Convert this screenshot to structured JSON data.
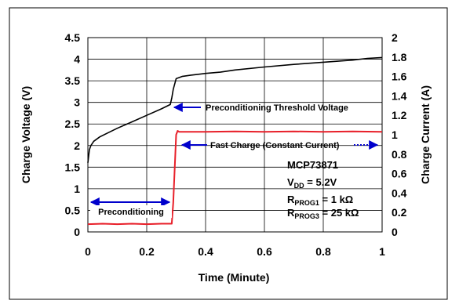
{
  "chart_data": {
    "type": "line",
    "xlabel": "Time (Minute)",
    "ylabel_left": "Charge Voltage (V)",
    "ylabel_right": "Charge Current (A)",
    "xlim": [
      0,
      1
    ],
    "ylim_left": [
      0,
      4.5
    ],
    "ylim_right": [
      0,
      2
    ],
    "x_ticks": [
      "0",
      "0.2",
      "0.4",
      "0.6",
      "0.8",
      "1"
    ],
    "y_ticks_left": [
      "0",
      "0.5",
      "1",
      "1.5",
      "2",
      "2.5",
      "3",
      "3.5",
      "4",
      "4.5"
    ],
    "y_ticks_right": [
      "0",
      "0.2",
      "0.4",
      "0.6",
      "0.8",
      "1",
      "1.2",
      "1.4",
      "1.6",
      "1.8",
      "2"
    ],
    "grid": true,
    "series": [
      {
        "axis": "left",
        "color": "#000000",
        "x": [
          0,
          0.005,
          0.01,
          0.02,
          0.04,
          0.07,
          0.1,
          0.15,
          0.2,
          0.25,
          0.28,
          0.285,
          0.29,
          0.3,
          0.32,
          0.35,
          0.4,
          0.45,
          0.5,
          0.6,
          0.7,
          0.8,
          0.9,
          0.95,
          1.0
        ],
        "values": [
          1.6,
          1.9,
          2.0,
          2.1,
          2.2,
          2.3,
          2.4,
          2.55,
          2.7,
          2.85,
          2.95,
          3.1,
          3.3,
          3.55,
          3.6,
          3.63,
          3.67,
          3.7,
          3.75,
          3.82,
          3.88,
          3.93,
          3.98,
          4.02,
          4.04
        ]
      },
      {
        "axis": "right",
        "color": "#e8202a",
        "x": [
          0,
          0.05,
          0.1,
          0.15,
          0.2,
          0.25,
          0.285,
          0.29,
          0.3,
          0.305,
          0.31,
          0.35,
          0.4,
          0.5,
          0.6,
          0.7,
          0.8,
          0.9,
          1.0
        ],
        "values": [
          0.08,
          0.085,
          0.08,
          0.085,
          0.08,
          0.085,
          0.085,
          0.3,
          1.0,
          1.04,
          1.03,
          1.03,
          1.03,
          1.035,
          1.03,
          1.035,
          1.03,
          1.035,
          1.03
        ]
      }
    ],
    "annotations": {
      "threshold": "Preconditioning Threshold Voltage",
      "fast_charge": "Fast Charge (Constant Current)",
      "precondition": "Preconditioning",
      "arrow_color": "#0000cc"
    },
    "specs": {
      "device": "MCP73871",
      "vdd_base": "V",
      "vdd_sub": "DD",
      "vdd_value": " = 5.2V",
      "rprog1_base": "R",
      "rprog1_sub": "PROG1",
      "rprog1_value": " = 1 kΩ",
      "rprog3_base": "R",
      "rprog3_sub": "PROG3",
      "rprog3_value": " = 25 kΩ"
    }
  }
}
